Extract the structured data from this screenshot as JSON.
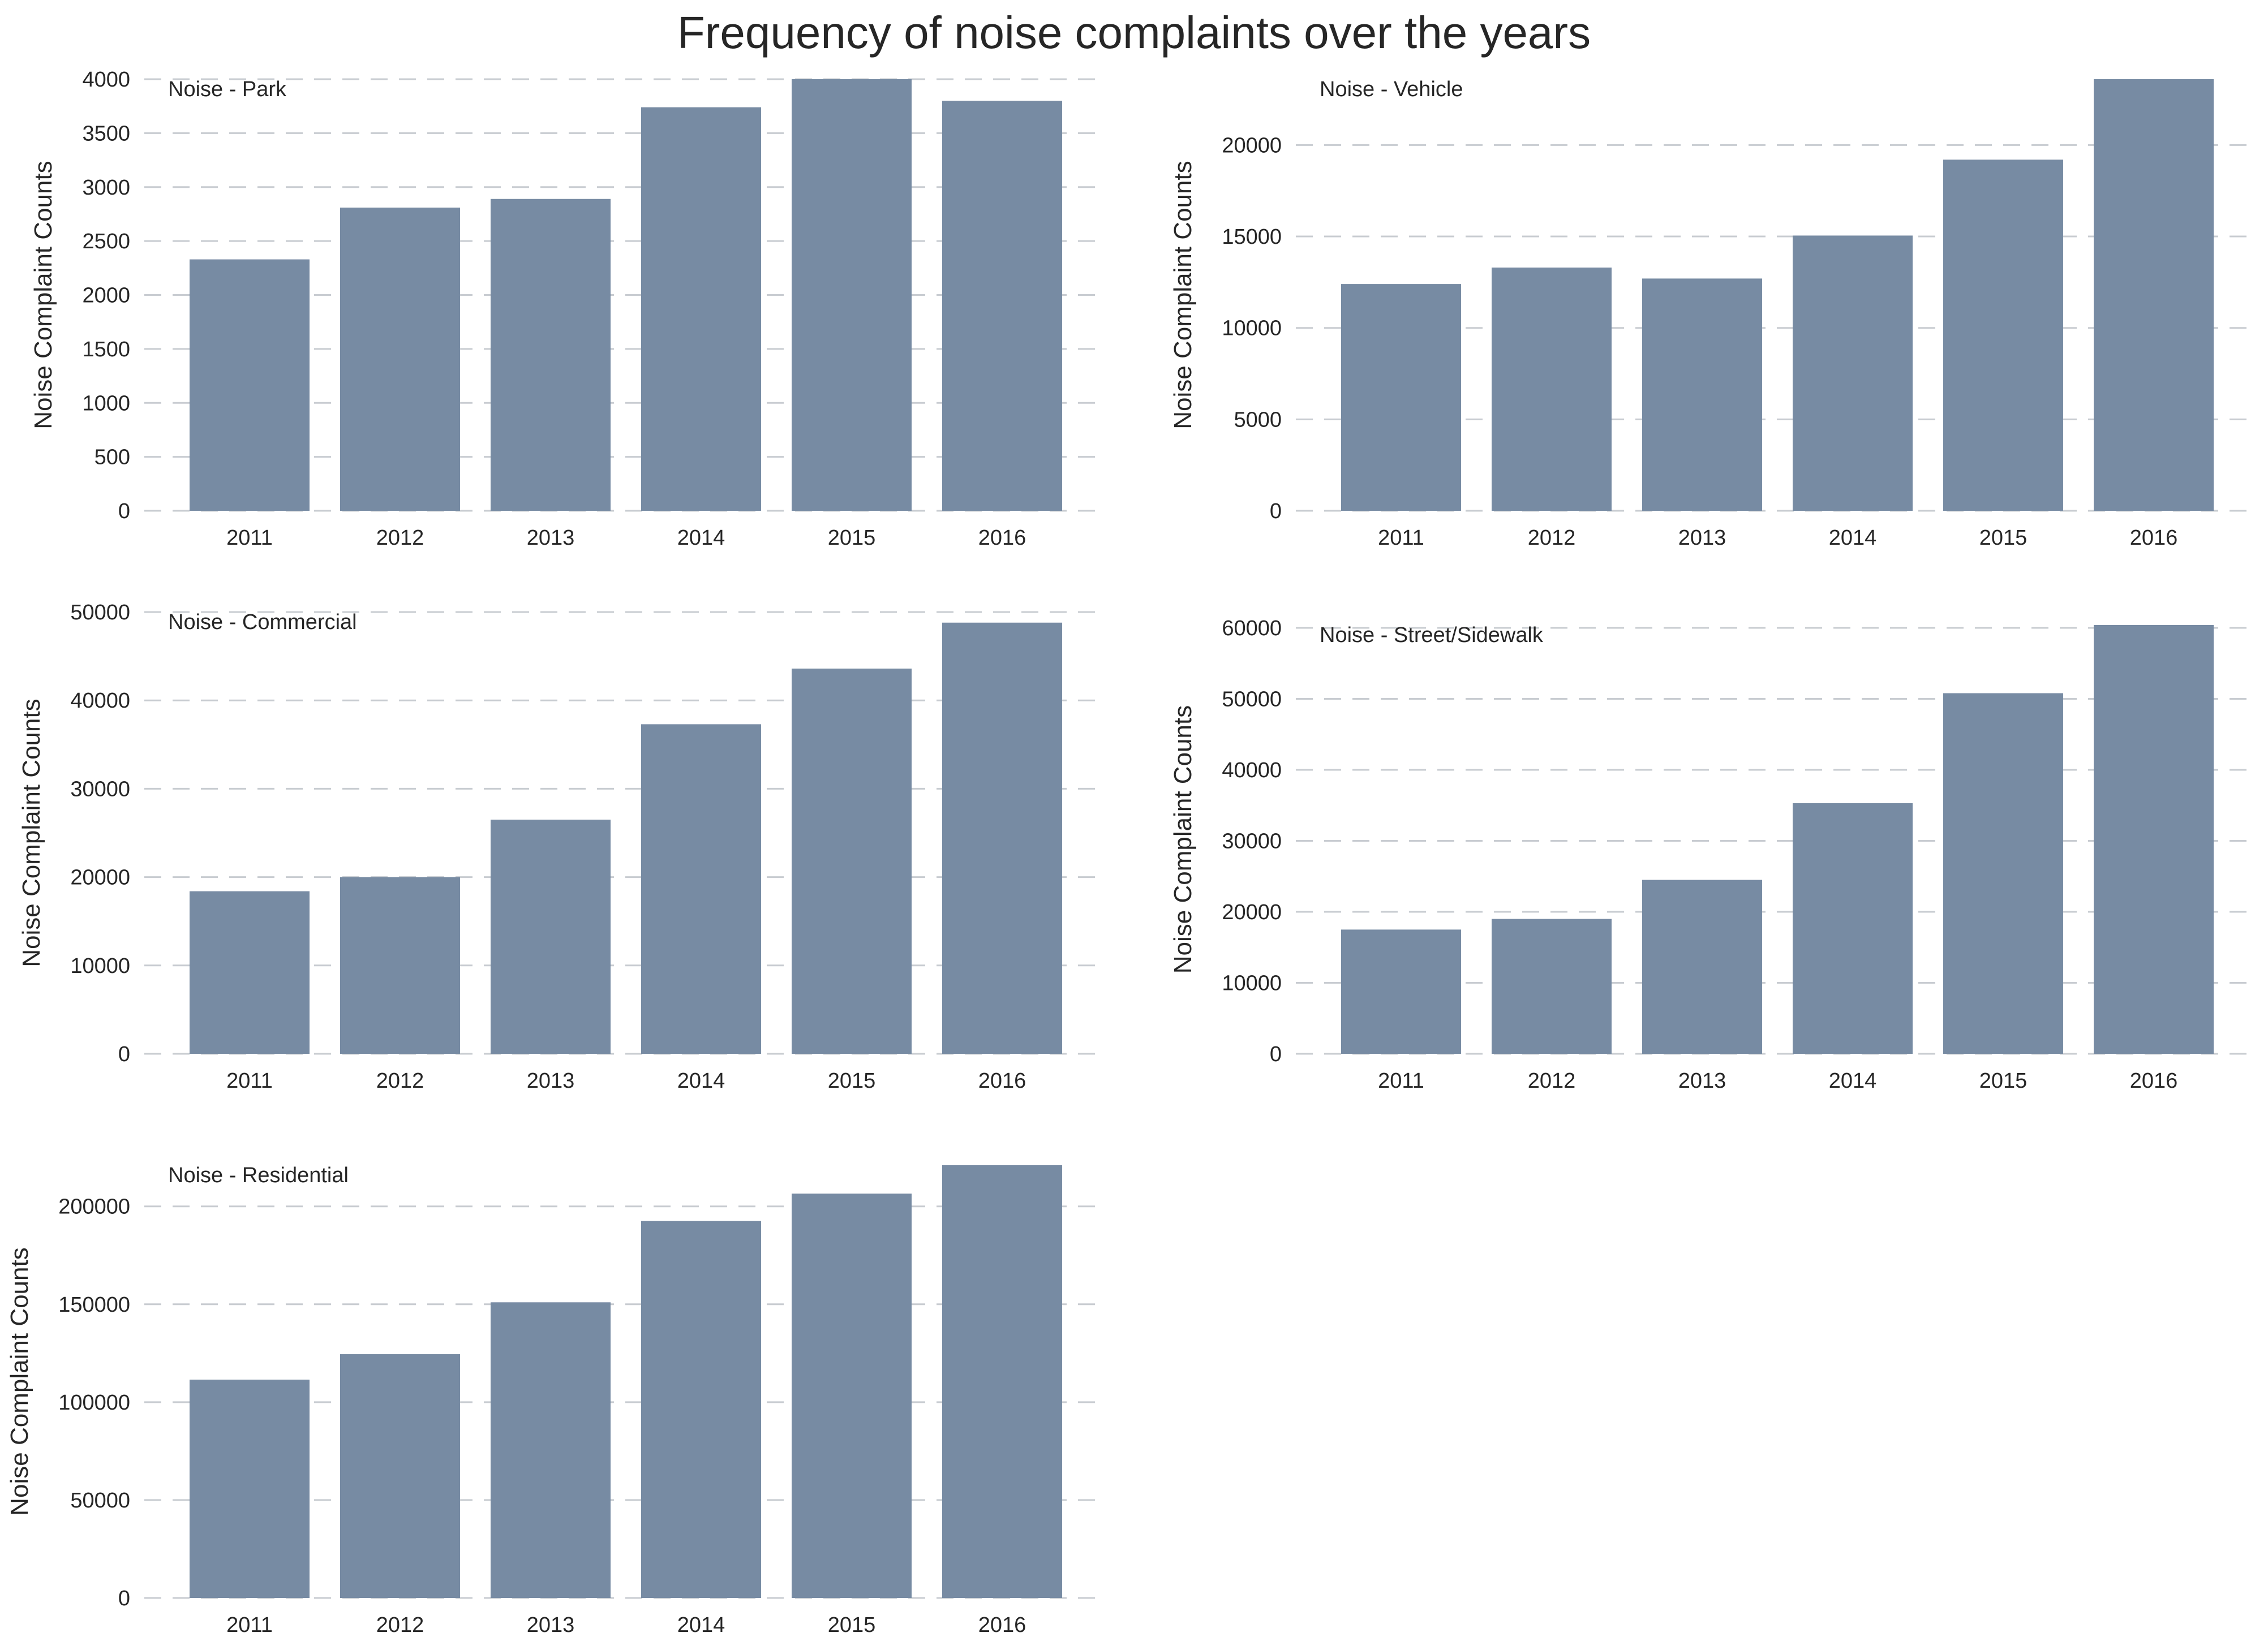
{
  "figure": {
    "title": "Frequency of noise complaints over the years",
    "bar_color": "#778ba3",
    "grid_color": "#c8ccd1"
  },
  "chart_data": [
    {
      "type": "bar",
      "title": "Noise - Park",
      "ylabel": "Noise Complaint Counts",
      "categories": [
        "2011",
        "2012",
        "2013",
        "2014",
        "2015",
        "2016"
      ],
      "values": [
        2330,
        2810,
        2890,
        3740,
        4000,
        3800
      ],
      "ylim": [
        0,
        4000
      ],
      "yticks": [
        0,
        500,
        1000,
        1500,
        2000,
        2500,
        3000,
        3500,
        4000
      ],
      "grid": true
    },
    {
      "type": "bar",
      "title": "Noise - Vehicle",
      "ylabel": "Noise Complaint Counts",
      "categories": [
        "2011",
        "2012",
        "2013",
        "2014",
        "2015",
        "2016"
      ],
      "values": [
        12400,
        13300,
        12700,
        15050,
        19200,
        23600
      ],
      "ylim": [
        0,
        23600
      ],
      "yticks": [
        0,
        5000,
        10000,
        15000,
        20000
      ],
      "grid": true
    },
    {
      "type": "bar",
      "title": "Noise - Commercial",
      "ylabel": "Noise Complaint Counts",
      "categories": [
        "2011",
        "2012",
        "2013",
        "2014",
        "2015",
        "2016"
      ],
      "values": [
        18400,
        20000,
        26500,
        37300,
        43600,
        48800
      ],
      "ylim": [
        0,
        50000
      ],
      "yticks": [
        0,
        10000,
        20000,
        30000,
        40000,
        50000
      ],
      "grid": true
    },
    {
      "type": "bar",
      "title": "Noise - Street/Sidewalk",
      "ylabel": "Noise Complaint Counts",
      "categories": [
        "2011",
        "2012",
        "2013",
        "2014",
        "2015",
        "2016"
      ],
      "values": [
        17500,
        19000,
        24500,
        35300,
        50800,
        60400
      ],
      "ylim": [
        0,
        60400
      ],
      "yticks": [
        0,
        10000,
        20000,
        30000,
        40000,
        50000,
        60000
      ],
      "grid": true
    },
    {
      "type": "bar",
      "title": "Noise - Residential",
      "ylabel": "Noise Complaint Counts",
      "categories": [
        "2011",
        "2012",
        "2013",
        "2014",
        "2015",
        "2016"
      ],
      "values": [
        111500,
        124500,
        151000,
        192500,
        206500,
        221000
      ],
      "ylim": [
        0,
        221000
      ],
      "yticks": [
        0,
        50000,
        100000,
        150000,
        200000
      ],
      "grid": true
    }
  ]
}
